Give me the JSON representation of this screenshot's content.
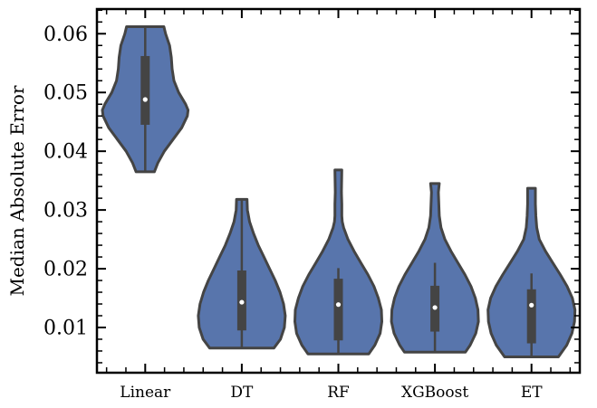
{
  "chart_data": {
    "type": "violin",
    "title": "",
    "xlabel": "",
    "ylabel": "Median Absolute Error",
    "ylim": [
      0.0023,
      0.0642
    ],
    "yticks": [
      0.01,
      0.02,
      0.03,
      0.04,
      0.05,
      0.06
    ],
    "ytick_labels": [
      "0.01",
      "0.02",
      "0.03",
      "0.04",
      "0.05",
      "0.06"
    ],
    "yminor_step": 0.002,
    "grid": false,
    "legend": "none",
    "colors": {
      "fill": "#5875ac",
      "edge": "#444444",
      "box": "#444444",
      "median": "#ffffff"
    },
    "categories": [
      "Linear",
      "DT",
      "RF",
      "XGBoost",
      "ET"
    ],
    "series": [
      {
        "label": "Linear",
        "min": 0.0365,
        "max": 0.0612,
        "q1": 0.0445,
        "median": 0.0488,
        "q3": 0.0562,
        "whisker_low": 0.0365,
        "whisker_high": 0.0612,
        "density": [
          [
            0.0365,
            0.21
          ],
          [
            0.038,
            0.29
          ],
          [
            0.04,
            0.44
          ],
          [
            0.042,
            0.64
          ],
          [
            0.044,
            0.84
          ],
          [
            0.046,
            0.97
          ],
          [
            0.047,
            0.985
          ],
          [
            0.048,
            0.93
          ],
          [
            0.05,
            0.77
          ],
          [
            0.052,
            0.66
          ],
          [
            0.054,
            0.62
          ],
          [
            0.056,
            0.6
          ],
          [
            0.058,
            0.56
          ],
          [
            0.06,
            0.47
          ],
          [
            0.0612,
            0.43
          ]
        ]
      },
      {
        "label": "DT",
        "min": 0.0065,
        "max": 0.0318,
        "q1": 0.0095,
        "median": 0.0143,
        "q3": 0.0197,
        "whisker_low": 0.0065,
        "whisker_high": 0.0318,
        "density": [
          [
            0.0065,
            0.74
          ],
          [
            0.008,
            0.89
          ],
          [
            0.01,
            0.98
          ],
          [
            0.012,
            1.0
          ],
          [
            0.014,
            0.96
          ],
          [
            0.016,
            0.88
          ],
          [
            0.018,
            0.77
          ],
          [
            0.02,
            0.64
          ],
          [
            0.022,
            0.51
          ],
          [
            0.024,
            0.38
          ],
          [
            0.026,
            0.27
          ],
          [
            0.028,
            0.18
          ],
          [
            0.03,
            0.13
          ],
          [
            0.0318,
            0.12
          ]
        ]
      },
      {
        "label": "RF",
        "min": 0.0055,
        "max": 0.0368,
        "q1": 0.0078,
        "median": 0.0139,
        "q3": 0.0183,
        "whisker_low": 0.0055,
        "whisker_high": 0.0201,
        "density": [
          [
            0.0055,
            0.7
          ],
          [
            0.007,
            0.84
          ],
          [
            0.009,
            0.96
          ],
          [
            0.011,
            1.0
          ],
          [
            0.013,
            0.99
          ],
          [
            0.015,
            0.92
          ],
          [
            0.017,
            0.82
          ],
          [
            0.019,
            0.68
          ],
          [
            0.021,
            0.52
          ],
          [
            0.023,
            0.36
          ],
          [
            0.025,
            0.22
          ],
          [
            0.027,
            0.12
          ],
          [
            0.028,
            0.09
          ],
          [
            0.029,
            0.08
          ],
          [
            0.031,
            0.08
          ],
          [
            0.033,
            0.07
          ],
          [
            0.0368,
            0.08
          ]
        ]
      },
      {
        "label": "XGBoost",
        "min": 0.0058,
        "max": 0.0345,
        "q1": 0.0093,
        "median": 0.0134,
        "q3": 0.0171,
        "whisker_low": 0.0058,
        "whisker_high": 0.021,
        "density": [
          [
            0.0058,
            0.7
          ],
          [
            0.007,
            0.81
          ],
          [
            0.009,
            0.94
          ],
          [
            0.011,
            1.0
          ],
          [
            0.013,
            0.99
          ],
          [
            0.015,
            0.93
          ],
          [
            0.017,
            0.83
          ],
          [
            0.019,
            0.69
          ],
          [
            0.021,
            0.53
          ],
          [
            0.023,
            0.37
          ],
          [
            0.025,
            0.23
          ],
          [
            0.027,
            0.14
          ],
          [
            0.029,
            0.1
          ],
          [
            0.031,
            0.09
          ],
          [
            0.033,
            0.08
          ],
          [
            0.0345,
            0.1
          ]
        ]
      },
      {
        "label": "ET",
        "min": 0.005,
        "max": 0.0337,
        "q1": 0.0073,
        "median": 0.0138,
        "q3": 0.0165,
        "whisker_low": 0.005,
        "whisker_high": 0.0192,
        "density": [
          [
            0.005,
            0.62
          ],
          [
            0.007,
            0.81
          ],
          [
            0.009,
            0.93
          ],
          [
            0.011,
            0.99
          ],
          [
            0.013,
            1.0
          ],
          [
            0.015,
            0.94
          ],
          [
            0.017,
            0.82
          ],
          [
            0.019,
            0.66
          ],
          [
            0.021,
            0.49
          ],
          [
            0.023,
            0.32
          ],
          [
            0.025,
            0.18
          ],
          [
            0.027,
            0.12
          ],
          [
            0.029,
            0.1
          ],
          [
            0.031,
            0.09
          ],
          [
            0.0337,
            0.09
          ]
        ]
      }
    ]
  }
}
